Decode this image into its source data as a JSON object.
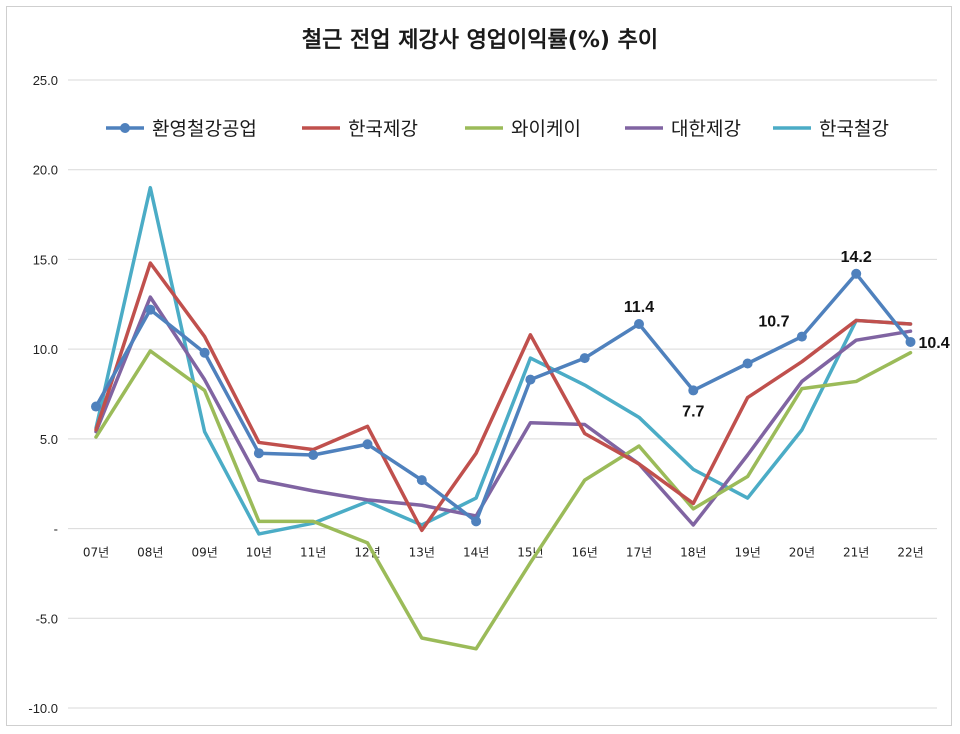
{
  "chart_data": {
    "type": "line",
    "title": "철근 전업 제강사 영업이익률(%) 추이",
    "xlabel": "",
    "ylabel": "",
    "ylim": [
      -10,
      25
    ],
    "y_tick_labels": [
      "25.0",
      "20.0",
      "15.0",
      "10.0",
      "5.0",
      "-",
      "-5.0",
      "-10.0"
    ],
    "y_tick_values": [
      25,
      20,
      15,
      10,
      5,
      0,
      -5,
      -10
    ],
    "categories": [
      "07년",
      "08년",
      "09년",
      "10년",
      "11년",
      "12년",
      "13년",
      "14년",
      "15년",
      "16년",
      "17년",
      "18년",
      "19년",
      "20년",
      "21년",
      "22년"
    ],
    "grid": "horizontal",
    "legend_position": "top",
    "series": [
      {
        "name": "환영철강공업",
        "color": "#4f81bd",
        "markers": true,
        "values": [
          6.8,
          12.2,
          9.8,
          4.2,
          4.1,
          4.7,
          2.7,
          0.4,
          8.3,
          9.5,
          11.4,
          7.7,
          9.2,
          10.7,
          14.2,
          10.4
        ]
      },
      {
        "name": "한국제강",
        "color": "#c0504d",
        "markers": false,
        "values": [
          5.5,
          14.8,
          10.7,
          4.8,
          4.4,
          5.7,
          -0.1,
          4.2,
          10.8,
          5.3,
          3.6,
          1.4,
          7.3,
          9.3,
          11.6,
          11.4
        ]
      },
      {
        "name": "와이케이",
        "color": "#9bbb59",
        "markers": false,
        "values": [
          5.1,
          9.9,
          7.7,
          0.4,
          0.4,
          -0.8,
          -6.1,
          -6.7,
          -1.9,
          2.7,
          4.6,
          1.1,
          2.9,
          7.8,
          8.2,
          9.8
        ]
      },
      {
        "name": "대한제강",
        "color": "#8064a2",
        "markers": false,
        "values": [
          5.4,
          12.9,
          8.3,
          2.7,
          2.1,
          1.6,
          1.3,
          0.7,
          5.9,
          5.8,
          3.6,
          0.2,
          4.1,
          8.2,
          10.5,
          11.0
        ]
      },
      {
        "name": "한국철강",
        "color": "#4bacc6",
        "markers": false,
        "values": [
          5.6,
          19.0,
          5.4,
          -0.3,
          0.3,
          1.5,
          0.2,
          1.7,
          9.5,
          8.0,
          6.2,
          3.3,
          1.7,
          5.5,
          11.6,
          11.4
        ]
      }
    ],
    "annotations": [
      {
        "series": "환영철강공업",
        "category": "17년",
        "text": "11.4",
        "placement": "above"
      },
      {
        "series": "환영철강공업",
        "category": "18년",
        "text": "7.7",
        "placement": "below"
      },
      {
        "series": "환영철강공업",
        "category": "20년",
        "text": "10.7",
        "placement": "above-left"
      },
      {
        "series": "환영철강공업",
        "category": "21년",
        "text": "14.2",
        "placement": "above"
      },
      {
        "series": "환영철강공업",
        "category": "22년",
        "text": "10.4",
        "placement": "right"
      }
    ]
  }
}
